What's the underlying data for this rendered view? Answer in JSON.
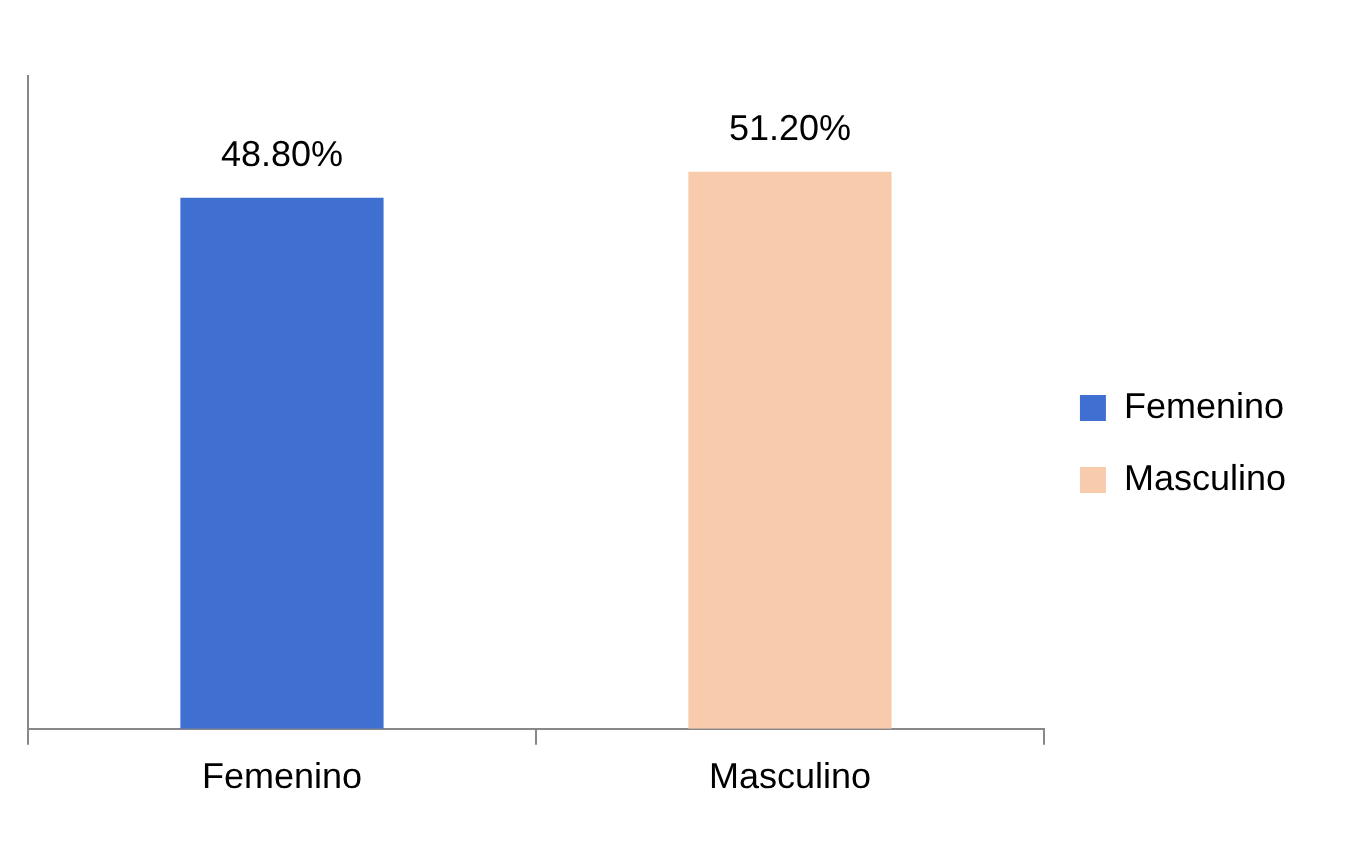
{
  "chart_data": {
    "type": "bar",
    "categories": [
      "Femenino",
      "Masculino"
    ],
    "series": [
      {
        "name": "Femenino",
        "color": "#3f6fd0",
        "values": [
          48.8,
          null
        ],
        "value_labels": [
          "48.80%",
          null
        ]
      },
      {
        "name": "Masculino",
        "color": "#f8cbad",
        "values": [
          null,
          51.2
        ],
        "value_labels": [
          null,
          "51.20%"
        ]
      }
    ],
    "tick_labels": "x",
    "grid": false,
    "legend": "right"
  }
}
